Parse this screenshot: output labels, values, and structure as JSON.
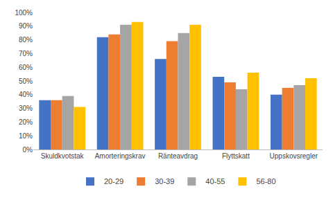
{
  "chart_data": {
    "type": "bar",
    "categories": [
      "Skuldkvotstak",
      "Amorteringskrav",
      "Räntеavdrag",
      "Flyttskatt",
      "Uppskovsregler"
    ],
    "series": [
      {
        "name": "20-29",
        "color": "#4472C4",
        "values": [
          0.36,
          0.82,
          0.66,
          0.53,
          0.4
        ]
      },
      {
        "name": "30-39",
        "color": "#ED7D31",
        "values": [
          0.36,
          0.84,
          0.79,
          0.49,
          0.45
        ]
      },
      {
        "name": "40-55",
        "color": "#A5A5A5",
        "values": [
          0.39,
          0.91,
          0.85,
          0.44,
          0.47
        ]
      },
      {
        "name": "56-80",
        "color": "#FFC000",
        "values": [
          0.31,
          0.93,
          0.91,
          0.56,
          0.52
        ]
      }
    ],
    "ylim": [
      0,
      1.0
    ],
    "yticks": [
      {
        "value": 0.0,
        "label": "0%"
      },
      {
        "value": 0.1,
        "label": "10%"
      },
      {
        "value": 0.2,
        "label": "20%"
      },
      {
        "value": 0.3,
        "label": "30%"
      },
      {
        "value": 0.4,
        "label": "40%"
      },
      {
        "value": 0.5,
        "label": "50%"
      },
      {
        "value": 0.6,
        "label": "60%"
      },
      {
        "value": 0.7,
        "label": "70%"
      },
      {
        "value": 0.8,
        "label": "80%"
      },
      {
        "value": 0.9,
        "label": "90%"
      },
      {
        "value": 1.0,
        "label": "100%"
      }
    ],
    "grid": false,
    "legend": "bottom"
  }
}
